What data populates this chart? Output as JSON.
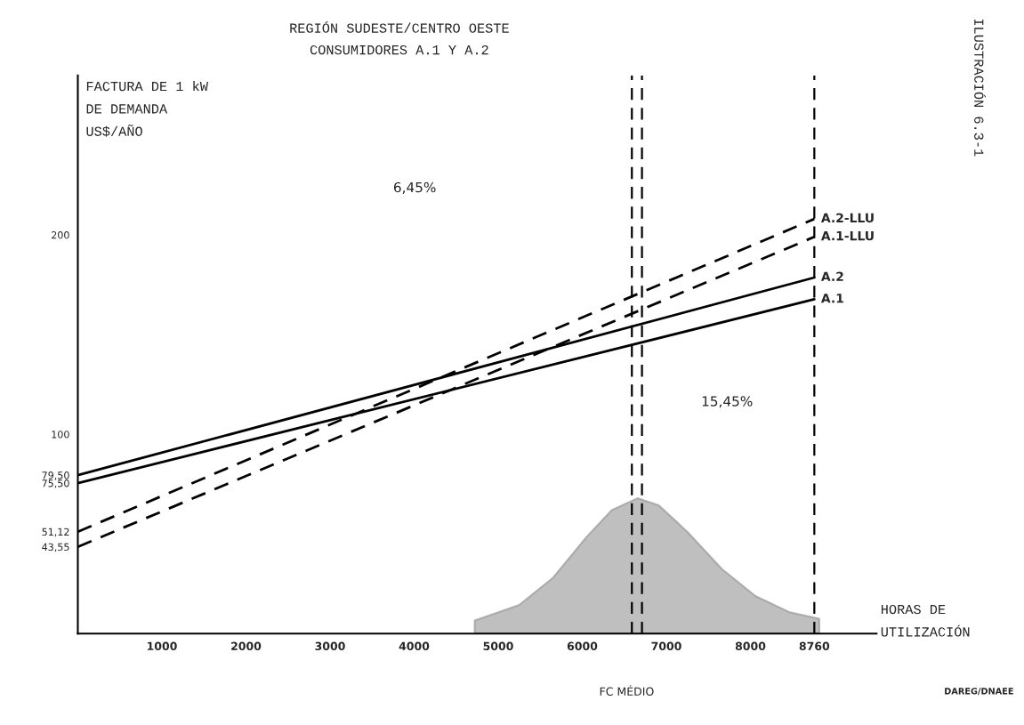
{
  "chart_data": {
    "type": "line",
    "title": "REGIÓN SUDESTE/CENTRO OESTE",
    "subtitle": "CONSUMIDORES A.1 Y A.2",
    "xlabel": "HORAS DE\nUTILIZACIÓN",
    "ylabel": "FACTURA DE 1 kW\nDE DEMANDA\nUS$/AÑO",
    "xlim": [
      0,
      9500
    ],
    "ylim": [
      0,
      280
    ],
    "xticks": [
      1000,
      2000,
      3000,
      4000,
      5000,
      6000,
      7000,
      8000,
      8760
    ],
    "yticks": [
      {
        "value": 43.55,
        "label": "43,55"
      },
      {
        "value": 51.12,
        "label": "51,12"
      },
      {
        "value": 75.5,
        "label": "75,50"
      },
      {
        "value": 79.5,
        "label": "79,50"
      },
      100,
      200
    ],
    "grid": false,
    "legend": false,
    "series": [
      {
        "name": "A.2-LLU",
        "color": "#000000",
        "line_style": "dashed",
        "x": [
          0,
          8760
        ],
        "values": [
          51.12,
          208
        ]
      },
      {
        "name": "A.1-LLU",
        "color": "#000000",
        "line_style": "dashed",
        "x": [
          0,
          8760
        ],
        "values": [
          43.55,
          199
        ]
      },
      {
        "name": "A.2",
        "color": "#000000",
        "line_style": "solid",
        "x": [
          0,
          8760
        ],
        "values": [
          79.5,
          178.6
        ]
      },
      {
        "name": "A.1",
        "color": "#000000",
        "line_style": "solid",
        "x": [
          0,
          8760
        ],
        "values": [
          75.5,
          167.7
        ]
      },
      {
        "type": "area",
        "color": "#808080",
        "x": [
          4720,
          5250,
          5650,
          6050,
          6350,
          6660,
          6910,
          7260,
          7660,
          8060,
          8470,
          8820
        ],
        "values": [
          6.6,
          14.4,
          28,
          48.5,
          62,
          68,
          64.4,
          50.7,
          32.5,
          18.9,
          10.7,
          7.5
        ]
      }
    ],
    "ref_lines": [
      {
        "axis": "x",
        "value": 8760,
        "line_style": "dashed",
        "color": "#000000"
      },
      {
        "axis": "x",
        "value": 6590,
        "line_style": "dashed",
        "color": "#000000"
      },
      {
        "axis": "x",
        "value": 6710,
        "line_style": "dashed",
        "color": "#000000"
      }
    ],
    "annotations": [
      "6,45%",
      "15,45%",
      "FC MÉDIO",
      "ILUSTRACIÓN 6.3-1",
      "DAREG/DNAEE"
    ]
  }
}
